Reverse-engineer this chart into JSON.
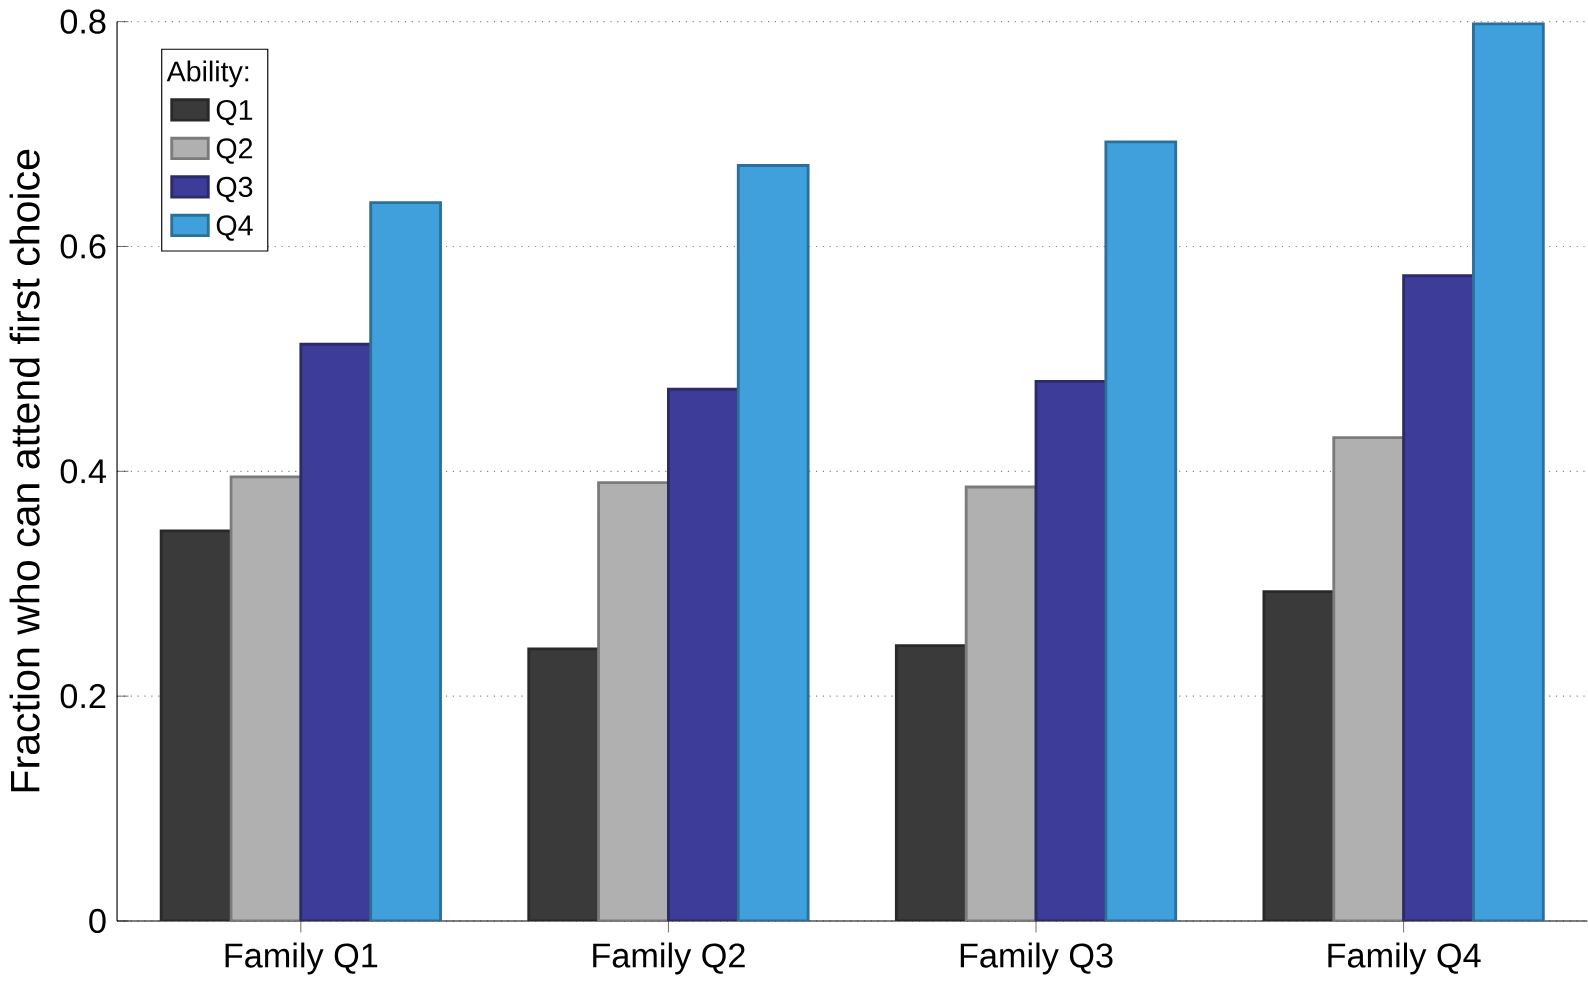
{
  "chart_data": {
    "type": "bar",
    "ylabel": "Fraction who can attend first choice",
    "legend_title": "Ability:",
    "categories": [
      "Family Q1",
      "Family Q2",
      "Family Q3",
      "Family Q4"
    ],
    "series": [
      {
        "name": "Q1",
        "color": "#3a3a3a",
        "values": [
          0.347,
          0.242,
          0.245,
          0.293
        ]
      },
      {
        "name": "Q2",
        "color": "#b0b0b0",
        "values": [
          0.395,
          0.39,
          0.386,
          0.43
        ]
      },
      {
        "name": "Q3",
        "color": "#3d3d99",
        "values": [
          0.513,
          0.473,
          0.48,
          0.574
        ]
      },
      {
        "name": "Q4",
        "color": "#3fa0dc",
        "values": [
          0.639,
          0.672,
          0.693,
          0.798
        ]
      }
    ],
    "ylim": [
      0,
      0.8
    ],
    "yticks": [
      0,
      0.2,
      0.4,
      0.6,
      0.8
    ],
    "grid": "y",
    "legend": "top left"
  }
}
